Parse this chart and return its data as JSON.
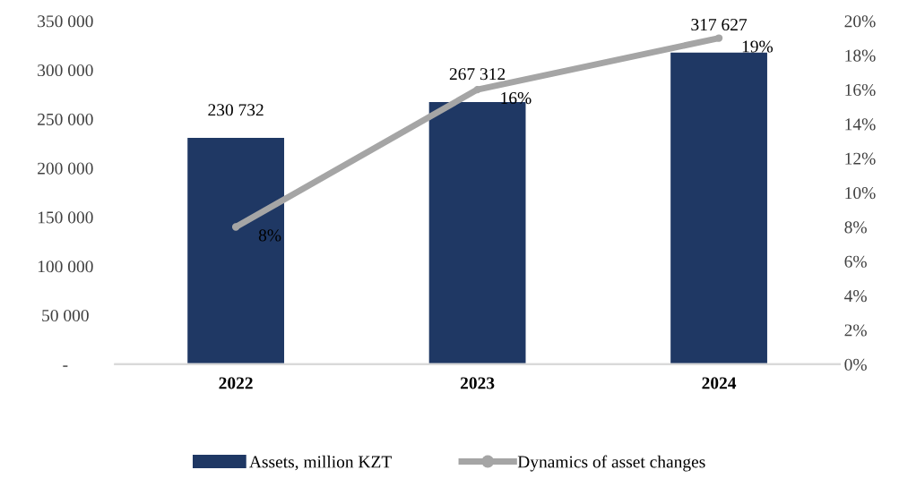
{
  "chart_data": {
    "type": "bar",
    "categories": [
      "2022",
      "2023",
      "2024"
    ],
    "series": [
      {
        "name": "Assets, million KZT",
        "color": "#1f3864",
        "values": [
          230732,
          267312,
          317627
        ],
        "value_labels": [
          "230 732",
          "267 312",
          "317 627"
        ]
      },
      {
        "name": "Dynamics of asset changes",
        "type": "line",
        "axis": "y2",
        "color": "#a5a5a5",
        "values": [
          8,
          16,
          19
        ],
        "value_labels": [
          "8%",
          "16%",
          "19%"
        ],
        "marker": "circle"
      }
    ],
    "ylim": [
      0,
      350000
    ],
    "yticks": [
      {
        "value": 0,
        "label": "-"
      },
      {
        "value": 50000,
        "label": "50 000"
      },
      {
        "value": 100000,
        "label": "100 000"
      },
      {
        "value": 150000,
        "label": "150 000"
      },
      {
        "value": 200000,
        "label": "200 000"
      },
      {
        "value": 250000,
        "label": "250 000"
      },
      {
        "value": 300000,
        "label": "300 000"
      },
      {
        "value": 350000,
        "label": "350 000"
      }
    ],
    "y2lim": [
      0,
      20
    ],
    "y2ticks": [
      {
        "value": 0,
        "label": "0%"
      },
      {
        "value": 2,
        "label": "2%"
      },
      {
        "value": 4,
        "label": "4%"
      },
      {
        "value": 6,
        "label": "6%"
      },
      {
        "value": 8,
        "label": "8%"
      },
      {
        "value": 10,
        "label": "10%"
      },
      {
        "value": 12,
        "label": "12%"
      },
      {
        "value": 14,
        "label": "14%"
      },
      {
        "value": 16,
        "label": "16%"
      },
      {
        "value": 18,
        "label": "18%"
      },
      {
        "value": 20,
        "label": "20%"
      }
    ],
    "legend": "bottom",
    "grid": false
  }
}
